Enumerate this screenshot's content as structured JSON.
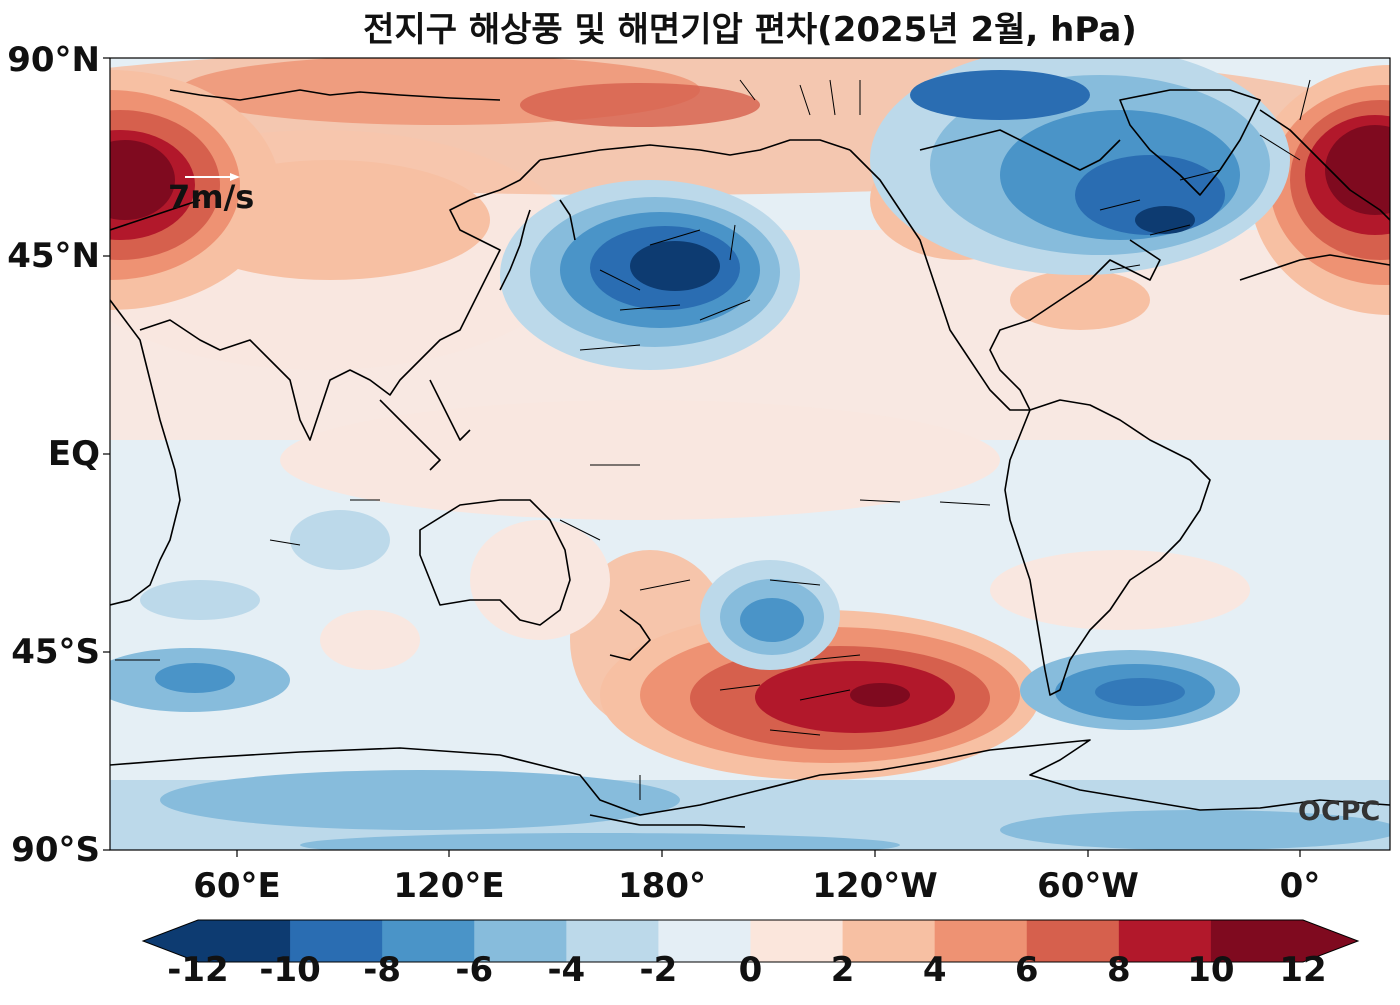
{
  "title": "전지구 해상풍 및 해면기압 편차(2025년 2월, hPa)",
  "axes": {
    "lat_ticks": [
      "90°N",
      "45°N",
      "EQ",
      "45°S",
      "90°S"
    ],
    "lon_ticks": [
      "60°E",
      "120°E",
      "180°",
      "120°W",
      "60°W",
      "0°"
    ]
  },
  "reference_vector": "7m/s",
  "logo": "OCPC",
  "colorbar": {
    "ticks": [
      "-12",
      "-10",
      "-8",
      "-6",
      "-4",
      "-2",
      "0",
      "2",
      "4",
      "6",
      "8",
      "10",
      "12"
    ],
    "colors": [
      "#0d3b71",
      "#2a6db2",
      "#4a94c8",
      "#87bcdc",
      "#bcd9ea",
      "#e4eef5",
      "#fbe6dc",
      "#f7c0a3",
      "#ee9273",
      "#d6604d",
      "#b2182b",
      "#7f0a1f"
    ],
    "extend": "both"
  },
  "colors": {
    "neutral_positive": "#f9e7e0",
    "neutral_negative": "#e5eff5",
    "land_outline": "#000000"
  },
  "map": {
    "projection": "PlateCarree, centered on 180°",
    "lon_range": [
      "40°E",
      "20°E (wrapped)"
    ],
    "lat_range": [
      "90°S",
      "90°N"
    ],
    "anomaly_centers": [
      {
        "region": "Europe / western Russia",
        "anomaly_hpa": 12,
        "sign": "positive"
      },
      {
        "region": "North Pacific (Aleutian)",
        "anomaly_hpa": -11,
        "sign": "negative"
      },
      {
        "region": "Greenland / Labrador Sea",
        "anomaly_hpa": -9,
        "sign": "negative"
      },
      {
        "region": "Arctic (Siberian coast)",
        "anomaly_hpa": 5,
        "sign": "positive"
      },
      {
        "region": "South Pacific (~55°S, 130°W)",
        "anomaly_hpa": 11,
        "sign": "positive"
      },
      {
        "region": "South Pacific (~37°S, 155°W)",
        "anomaly_hpa": -6,
        "sign": "negative"
      },
      {
        "region": "South Atlantic (~55°S, 40°W)",
        "anomaly_hpa": -7,
        "sign": "negative"
      },
      {
        "region": "Southern Indian Ocean (~52°S, 55°E)",
        "anomaly_hpa": -5,
        "sign": "negative"
      },
      {
        "region": "Antarctic",
        "anomaly_hpa": -4,
        "sign": "negative"
      }
    ]
  }
}
